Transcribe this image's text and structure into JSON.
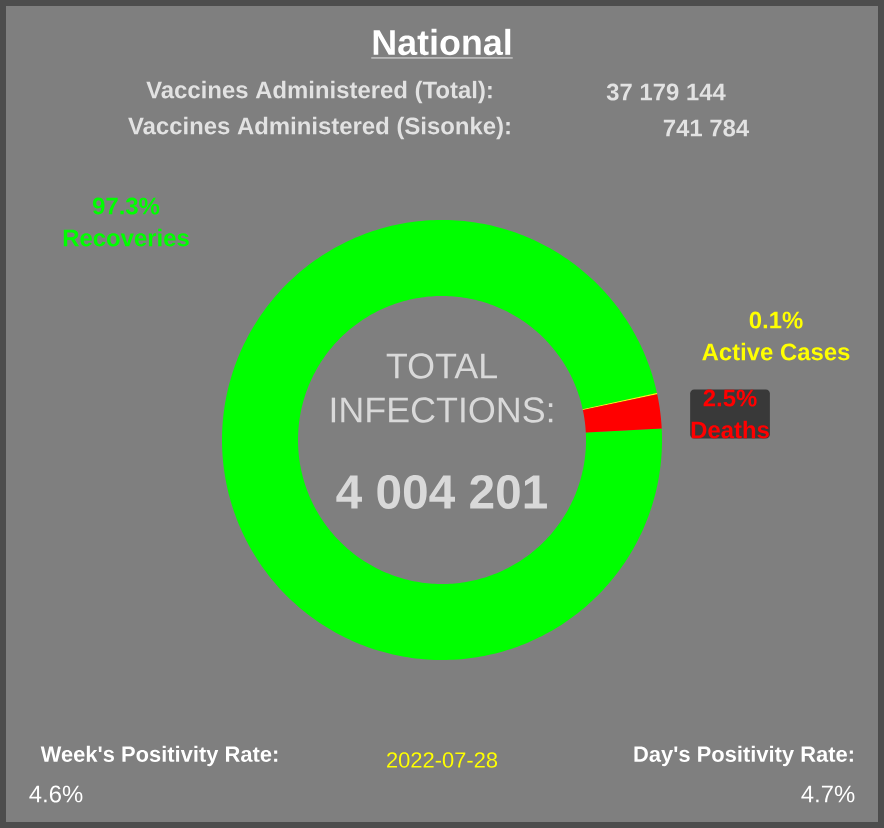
{
  "chart_data": {
    "type": "donut",
    "title": "National",
    "categories": [
      "Recoveries",
      "Active Cases",
      "Deaths"
    ],
    "values": [
      97.3,
      0.1,
      2.5
    ],
    "colors": [
      "#00ff00",
      "#ffff00",
      "#ff0000"
    ],
    "value_labels": [
      "97.3%",
      "0.1%",
      "2.5%"
    ],
    "annotations": [
      "Vaccines Administered (Total):",
      "37 179 144",
      "Vaccines Administered (Sisonke):",
      "741 784",
      "TOTAL",
      "INFECTIONS:",
      "4 004 201",
      "Week's Positivity Rate:",
      "4.6%",
      "2022-07-28",
      "Day's Positivity Rate:",
      "4.7%"
    ]
  }
}
